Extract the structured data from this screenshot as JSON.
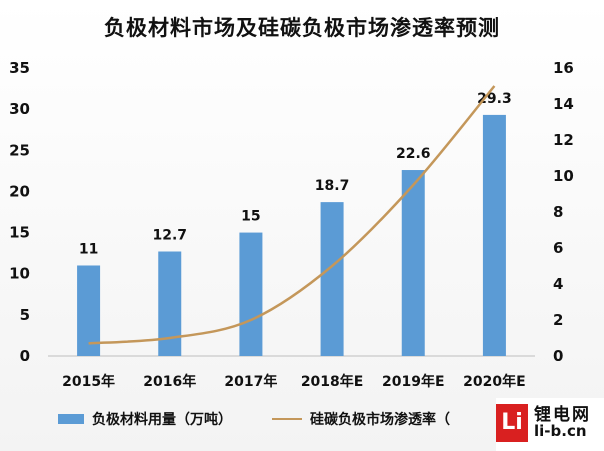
{
  "chart_data": {
    "type": "bar",
    "title": "负极材料市场及硅碳负极市场渗透率预测",
    "categories": [
      "2015年",
      "2016年",
      "2017年",
      "2018年E",
      "2019年E",
      "2020年E"
    ],
    "series": [
      {
        "name": "负极材料用量（万吨）",
        "type": "bar",
        "axis": "left",
        "values": [
          11,
          12.7,
          15,
          18.7,
          22.6,
          29.3
        ],
        "color": "#5b9bd5",
        "data_labels": [
          "11",
          "12.7",
          "15",
          "18.7",
          "22.6",
          "29.3"
        ]
      },
      {
        "name": "硅碳负极市场渗透率（",
        "type": "line",
        "axis": "right",
        "values": [
          0.7,
          1.0,
          2.0,
          5.0,
          9.5,
          15.0
        ],
        "color": "#c4975a"
      }
    ],
    "ylim_left": [
      0,
      35
    ],
    "yticks_left": [
      "0",
      "5",
      "10",
      "15",
      "20",
      "25",
      "30",
      "35"
    ],
    "ylim_right": [
      0,
      16
    ],
    "yticks_right": [
      "0",
      "2",
      "4",
      "6",
      "8",
      "10",
      "12",
      "14",
      "16"
    ],
    "grid": false,
    "legend": "bottom"
  },
  "watermark": {
    "badge": "Li",
    "name": "锂电网",
    "url": "li-b.cn"
  }
}
